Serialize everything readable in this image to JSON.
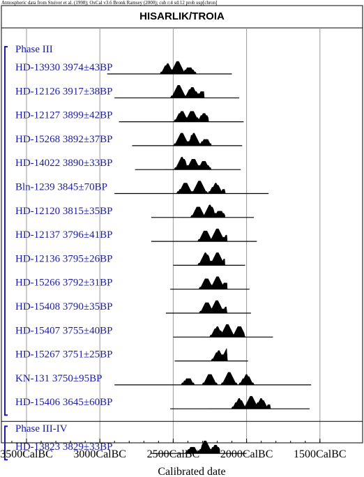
{
  "header_note": "Atmospheric data from Stuiver et al. (1998); OxCal v3.6 Bronk Ramsey (2000); cub r:4 sd:12 prob usp[chron]",
  "chart_data": {
    "type": "radiocarbon_multiplot",
    "title": "HISARLIK/TROIA",
    "xlabel": "Calibrated date",
    "x_axis": {
      "range_bc": [
        3700,
        1470
      ],
      "ticks_bc": [
        3500,
        3000,
        2500,
        2000,
        1500
      ],
      "tick_labels": [
        "3500CalBC",
        "3000CalBC",
        "2500CalBC",
        "2000CalBC",
        "1500CalBC"
      ],
      "grid": true
    },
    "groups": [
      {
        "phase": "Phase III",
        "samples": [
          {
            "label": "HD-13930  3974±43BP",
            "range_bc": [
              2950,
              2100
            ],
            "peaks": [
              [
                2540,
                14
              ],
              [
                2470,
                18
              ],
              [
                2390,
                10
              ]
            ]
          },
          {
            "label": "HD-12126  3917±38BP",
            "range_bc": [
              2900,
              2050
            ],
            "peaks": [
              [
                2460,
                18
              ],
              [
                2370,
                16
              ],
              [
                2300,
                10
              ]
            ]
          },
          {
            "label": "HD-12127  3899±42BP",
            "range_bc": [
              2870,
              2020
            ],
            "peaks": [
              [
                2440,
                16
              ],
              [
                2370,
                16
              ],
              [
                2290,
                12
              ]
            ]
          },
          {
            "label": "HD-15268  3892±37BP",
            "range_bc": [
              2780,
              2030
            ],
            "peaks": [
              [
                2440,
                18
              ],
              [
                2360,
                18
              ],
              [
                2280,
                10
              ]
            ]
          },
          {
            "label": "HD-14022  3890±33BP",
            "range_bc": [
              2760,
              2040
            ],
            "peaks": [
              [
                2440,
                18
              ],
              [
                2360,
                16
              ],
              [
                2290,
                12
              ]
            ]
          },
          {
            "label": "Bln-1239  3845±70BP",
            "range_bc": [
              2900,
              1850
            ],
            "peaks": [
              [
                2420,
                16
              ],
              [
                2320,
                18
              ],
              [
                2210,
                14
              ],
              [
                2140,
                8
              ]
            ]
          },
          {
            "label": "HD-12120  3815±35BP",
            "range_bc": [
              2650,
              1950
            ],
            "peaks": [
              [
                2330,
                16
              ],
              [
                2250,
                18
              ],
              [
                2180,
                10
              ]
            ]
          },
          {
            "label": "HD-12137  3796±41BP",
            "range_bc": [
              2650,
              1930
            ],
            "peaks": [
              [
                2280,
                16
              ],
              [
                2200,
                18
              ],
              [
                2130,
                10
              ]
            ]
          },
          {
            "label": "HD-12136  3795±26BP",
            "range_bc": [
              2500,
              2010
            ],
            "peaks": [
              [
                2280,
                18
              ],
              [
                2200,
                18
              ],
              [
                2150,
                8
              ]
            ]
          },
          {
            "label": "HD-15266  3792±31BP",
            "range_bc": [
              2520,
              1980
            ],
            "peaks": [
              [
                2270,
                16
              ],
              [
                2200,
                18
              ],
              [
                2140,
                10
              ]
            ]
          },
          {
            "label": "HD-15408  3790±35BP",
            "range_bc": [
              2550,
              1970
            ],
            "peaks": [
              [
                2270,
                16
              ],
              [
                2200,
                18
              ],
              [
                2130,
                10
              ]
            ]
          },
          {
            "label": "HD-15407  3755±40BP",
            "range_bc": [
              2500,
              1820
            ],
            "peaks": [
              [
                2200,
                14
              ],
              [
                2130,
                18
              ],
              [
                2050,
                16
              ],
              [
                1990,
                8
              ]
            ]
          },
          {
            "label": "HD-15267  3751±25BP",
            "range_bc": [
              2490,
              1990
            ],
            "peaks": [
              [
                2190,
                14
              ],
              [
                2130,
                18
              ],
              [
                2060,
                12
              ]
            ]
          },
          {
            "label": "KN-131  3750±95BP",
            "range_bc": [
              2900,
              1560
            ],
            "peaks": [
              [
                2400,
                10
              ],
              [
                2250,
                16
              ],
              [
                2120,
                18
              ],
              [
                2000,
                14
              ],
              [
                1900,
                6
              ]
            ]
          },
          {
            "label": "HD-15406  3645±60BP",
            "range_bc": [
              2520,
              1570
            ],
            "peaks": [
              [
                2050,
                14
              ],
              [
                1970,
                18
              ],
              [
                1900,
                14
              ],
              [
                1840,
                6
              ]
            ]
          }
        ]
      },
      {
        "phase": "Phase III-IV",
        "samples": [
          {
            "label": "HD-13823  3829±33BP",
            "range_bc": [
              2650,
              2000
            ],
            "peaks": [
              [
                2370,
                10
              ],
              [
                2280,
                18
              ],
              [
                2210,
                12
              ]
            ]
          }
        ]
      }
    ]
  }
}
